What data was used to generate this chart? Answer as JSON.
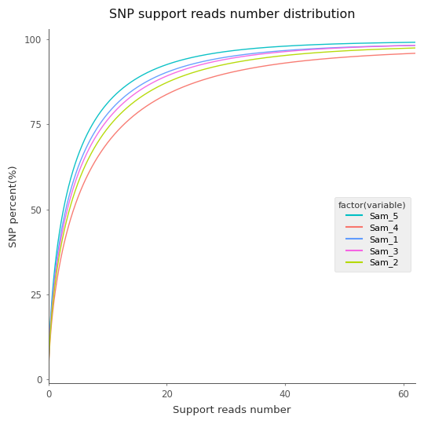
{
  "title": "SNP support reads number distribution",
  "xlabel": "Support reads number",
  "ylabel": "SNP percent(%)",
  "xlim": [
    0,
    62
  ],
  "ylim": [
    -1,
    103
  ],
  "xticks": [
    0,
    20,
    40,
    60
  ],
  "yticks": [
    0,
    25,
    50,
    75,
    100
  ],
  "legend_title": "factor(variable)",
  "curves": [
    {
      "name": "Sam_5",
      "color": "#00BFC4",
      "asymptote": 99.5,
      "rate": 0.38
    },
    {
      "name": "Sam_4",
      "color": "#F8766D",
      "asymptote": 97.5,
      "rate": 0.28
    },
    {
      "name": "Sam_1",
      "color": "#619CFF",
      "asymptote": 98.8,
      "rate": 0.35
    },
    {
      "name": "Sam_3",
      "color": "#F564E3",
      "asymptote": 99.0,
      "rate": 0.33
    },
    {
      "name": "Sam_2",
      "color": "#B4D900",
      "asymptote": 98.5,
      "rate": 0.31
    }
  ],
  "background_color": "#ffffff",
  "panel_bg": "#ffffff",
  "legend_bg": "#ebebeb"
}
